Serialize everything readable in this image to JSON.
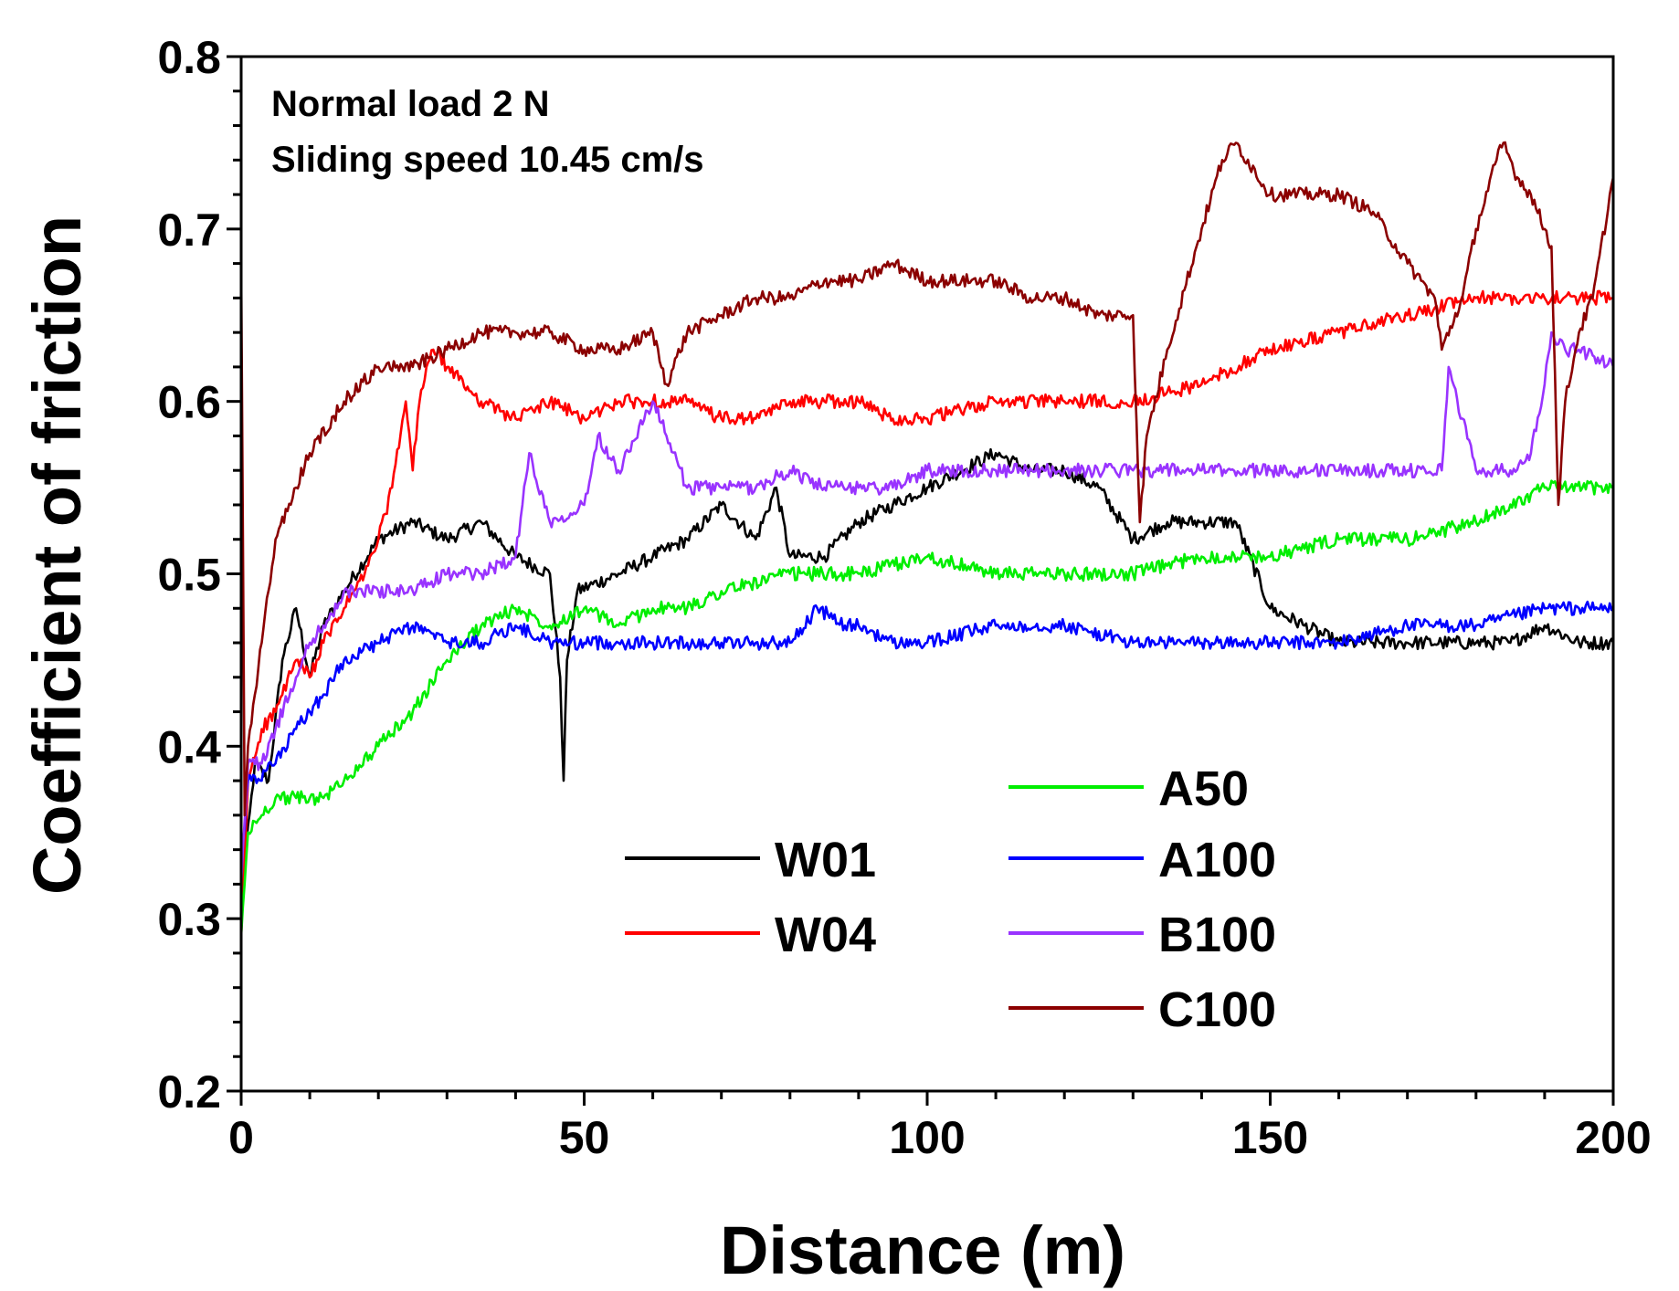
{
  "chart_data": {
    "type": "line",
    "title": "",
    "xlabel": "Distance (m)",
    "ylabel": "Coefficient of friction",
    "xlim": [
      0,
      200
    ],
    "ylim": [
      0.2,
      0.8
    ],
    "xticks": [
      "0",
      "50",
      "100",
      "150",
      "200"
    ],
    "yticks": [
      "0.2",
      "0.3",
      "0.4",
      "0.5",
      "0.6",
      "0.7",
      "0.8"
    ],
    "annotations": [
      "Normal load 2 N",
      "Sliding speed 10.45 cm/s"
    ],
    "legend_position": "bottom-right",
    "series": [
      {
        "name": "W01",
        "color": "#000000",
        "x": [
          0,
          2,
          4,
          6,
          8,
          10,
          12,
          15,
          20,
          25,
          30,
          35,
          40,
          45,
          46.5,
          47,
          47.5,
          49,
          55,
          60,
          65,
          70,
          75,
          78,
          80,
          85,
          90,
          95,
          100,
          105,
          110,
          115,
          120,
          125,
          130,
          135,
          140,
          145,
          150,
          155,
          160,
          165,
          170,
          175,
          180,
          185,
          190,
          195,
          200
        ],
        "y": [
          0.31,
          0.39,
          0.38,
          0.45,
          0.48,
          0.44,
          0.47,
          0.49,
          0.52,
          0.53,
          0.52,
          0.53,
          0.51,
          0.5,
          0.44,
          0.38,
          0.45,
          0.49,
          0.5,
          0.51,
          0.52,
          0.54,
          0.52,
          0.55,
          0.51,
          0.51,
          0.53,
          0.54,
          0.55,
          0.56,
          0.57,
          0.56,
          0.56,
          0.55,
          0.52,
          0.53,
          0.53,
          0.53,
          0.48,
          0.47,
          0.46,
          0.46,
          0.46,
          0.46,
          0.46,
          0.46,
          0.47,
          0.46,
          0.46
        ]
      },
      {
        "name": "W04",
        "color": "#ff0000",
        "x": [
          0,
          1,
          3,
          5,
          8,
          10,
          12,
          15,
          18,
          20,
          22,
          24,
          25,
          26,
          27,
          28,
          30,
          35,
          40,
          45,
          50,
          55,
          60,
          65,
          70,
          75,
          80,
          85,
          90,
          95,
          100,
          110,
          120,
          130,
          140,
          150,
          160,
          170,
          180,
          190,
          200
        ],
        "y": [
          0.29,
          0.38,
          0.41,
          0.42,
          0.45,
          0.44,
          0.46,
          0.48,
          0.5,
          0.52,
          0.55,
          0.6,
          0.56,
          0.6,
          0.62,
          0.63,
          0.62,
          0.6,
          0.59,
          0.6,
          0.59,
          0.6,
          0.6,
          0.6,
          0.59,
          0.59,
          0.6,
          0.6,
          0.6,
          0.59,
          0.59,
          0.6,
          0.6,
          0.6,
          0.61,
          0.63,
          0.64,
          0.65,
          0.66,
          0.66,
          0.66
        ]
      },
      {
        "name": "A50",
        "color": "#00ee00",
        "x": [
          0,
          1,
          3,
          5,
          8,
          10,
          12,
          15,
          20,
          25,
          30,
          35,
          40,
          45,
          50,
          55,
          60,
          65,
          70,
          80,
          90,
          100,
          110,
          120,
          130,
          140,
          150,
          160,
          170,
          180,
          190,
          200
        ],
        "y": [
          0.29,
          0.35,
          0.36,
          0.37,
          0.37,
          0.37,
          0.37,
          0.38,
          0.4,
          0.42,
          0.45,
          0.47,
          0.48,
          0.47,
          0.48,
          0.47,
          0.48,
          0.48,
          0.49,
          0.5,
          0.5,
          0.51,
          0.5,
          0.5,
          0.5,
          0.51,
          0.51,
          0.52,
          0.52,
          0.53,
          0.55,
          0.55
        ]
      },
      {
        "name": "A100",
        "color": "#0000ff",
        "x": [
          0,
          1,
          3,
          4,
          5,
          8,
          10,
          12,
          15,
          20,
          25,
          30,
          35,
          40,
          45,
          50,
          55,
          60,
          65,
          70,
          75,
          80,
          84,
          88,
          90,
          95,
          100,
          110,
          120,
          130,
          140,
          150,
          155,
          160,
          170,
          180,
          190,
          200
        ],
        "y": [
          0.33,
          0.38,
          0.38,
          0.39,
          0.39,
          0.41,
          0.42,
          0.43,
          0.45,
          0.46,
          0.47,
          0.46,
          0.46,
          0.47,
          0.46,
          0.46,
          0.46,
          0.46,
          0.46,
          0.46,
          0.46,
          0.46,
          0.48,
          0.47,
          0.47,
          0.46,
          0.46,
          0.47,
          0.47,
          0.46,
          0.46,
          0.46,
          0.46,
          0.46,
          0.47,
          0.47,
          0.48,
          0.48
        ]
      },
      {
        "name": "B100",
        "color": "#9933ff",
        "x": [
          0,
          1,
          3,
          5,
          8,
          10,
          12,
          14,
          15,
          20,
          25,
          30,
          35,
          40,
          42,
          45,
          50,
          52,
          55,
          60,
          62,
          65,
          70,
          75,
          80,
          85,
          90,
          95,
          100,
          110,
          120,
          130,
          140,
          150,
          160,
          170,
          175,
          176,
          180,
          185,
          188,
          190,
          191,
          193,
          195,
          200
        ],
        "y": [
          0.32,
          0.39,
          0.39,
          0.41,
          0.44,
          0.46,
          0.47,
          0.48,
          0.49,
          0.49,
          0.49,
          0.5,
          0.5,
          0.51,
          0.57,
          0.53,
          0.54,
          0.58,
          0.56,
          0.6,
          0.58,
          0.55,
          0.55,
          0.55,
          0.56,
          0.55,
          0.55,
          0.55,
          0.56,
          0.56,
          0.56,
          0.56,
          0.56,
          0.56,
          0.56,
          0.56,
          0.56,
          0.62,
          0.56,
          0.56,
          0.57,
          0.61,
          0.64,
          0.63,
          0.63,
          0.62
        ]
      },
      {
        "name": "C100",
        "color": "#8b0000",
        "x": [
          0,
          0.5,
          1,
          2,
          3,
          5,
          8,
          10,
          15,
          20,
          25,
          30,
          35,
          40,
          45,
          50,
          55,
          60,
          62,
          65,
          70,
          75,
          80,
          85,
          90,
          95,
          100,
          105,
          110,
          115,
          120,
          125,
          130,
          131,
          132,
          135,
          140,
          143,
          145,
          150,
          155,
          160,
          165,
          170,
          172,
          174,
          175,
          178,
          180,
          183,
          184,
          186,
          188,
          190,
          191,
          192,
          193,
          195,
          197,
          200
        ],
        "y": [
          0.68,
          0.36,
          0.4,
          0.43,
          0.46,
          0.52,
          0.55,
          0.57,
          0.6,
          0.62,
          0.62,
          0.63,
          0.64,
          0.64,
          0.64,
          0.63,
          0.63,
          0.64,
          0.61,
          0.64,
          0.65,
          0.66,
          0.66,
          0.67,
          0.67,
          0.68,
          0.67,
          0.67,
          0.67,
          0.66,
          0.66,
          0.65,
          0.65,
          0.53,
          0.58,
          0.63,
          0.7,
          0.74,
          0.75,
          0.72,
          0.72,
          0.72,
          0.71,
          0.68,
          0.67,
          0.66,
          0.63,
          0.66,
          0.7,
          0.74,
          0.75,
          0.73,
          0.72,
          0.7,
          0.69,
          0.54,
          0.6,
          0.64,
          0.66,
          0.73
        ]
      }
    ],
    "legend": [
      {
        "name": "W01",
        "column": 0,
        "row": 1
      },
      {
        "name": "W04",
        "column": 0,
        "row": 2
      },
      {
        "name": "A50",
        "column": 1,
        "row": 0
      },
      {
        "name": "A100",
        "column": 1,
        "row": 1
      },
      {
        "name": "B100",
        "column": 1,
        "row": 2
      },
      {
        "name": "C100",
        "column": 1,
        "row": 3
      }
    ]
  }
}
